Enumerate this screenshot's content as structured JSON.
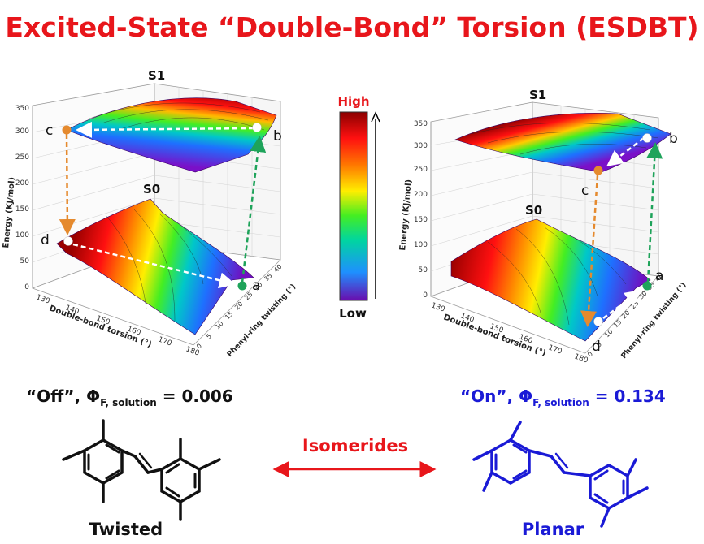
{
  "title": "Excited-State “Double-Bond” Torsion (ESDBT)",
  "colors": {
    "title": "#e8161b",
    "off": "#111111",
    "on": "#1a1ad6",
    "excited_arrow": "#1ea35a",
    "decay_arrow": "#e58a2e",
    "path_arrow": "#ffffff",
    "isomer_arrow": "#e8161b"
  },
  "colorbar": {
    "high_label": "High",
    "low_label": "Low",
    "stops": [
      "#6a0dad",
      "#1e90ff",
      "#00d5a0",
      "#44ee22",
      "#ffee00",
      "#ff7700",
      "#ff1010",
      "#8b0000"
    ]
  },
  "left_plot": {
    "s1_label": "S1",
    "s0_label": "S0",
    "y_axis_label": "Energy (KJ/mol)",
    "y_ticks": [
      "0",
      "50",
      "100",
      "150",
      "200",
      "250",
      "300",
      "350"
    ],
    "x_axis_label": "Double-bond torsion (°)",
    "x_ticks": [
      "130",
      "140",
      "150",
      "160",
      "170",
      "180"
    ],
    "z_axis_label": "Phenyl-ring twisting (°)",
    "z_ticks": [
      "0",
      "5",
      "10",
      "15",
      "20",
      "25",
      "30",
      "35",
      "40"
    ],
    "points": [
      "a",
      "b",
      "c",
      "d"
    ]
  },
  "right_plot": {
    "s1_label": "S1",
    "s0_label": "S0",
    "y_axis_label": "Energy (KJ/mol)",
    "y_ticks": [
      "0",
      "50",
      "100",
      "150",
      "200",
      "250",
      "300",
      "350"
    ],
    "x_axis_label": "Double-bond torsion (°)",
    "x_ticks": [
      "130",
      "140",
      "150",
      "160",
      "170",
      "180"
    ],
    "z_axis_label": "Phenyl-ring twisting (°)",
    "z_ticks": [
      "0",
      "5",
      "10",
      "15",
      "20",
      "25",
      "30",
      "35",
      "40"
    ],
    "points": [
      "a",
      "b",
      "c",
      "d"
    ]
  },
  "off_label": {
    "prefix": "“Off”, ",
    "phi": "Φ",
    "subscript": "F, solution",
    "value": " = 0.006"
  },
  "on_label": {
    "prefix": "“On”, ",
    "phi": "Φ",
    "subscript": "F, solution",
    "value": " = 0.134"
  },
  "isomerides_label": "Isomerides",
  "twisted_label": "Twisted",
  "planar_label": "Planar"
}
